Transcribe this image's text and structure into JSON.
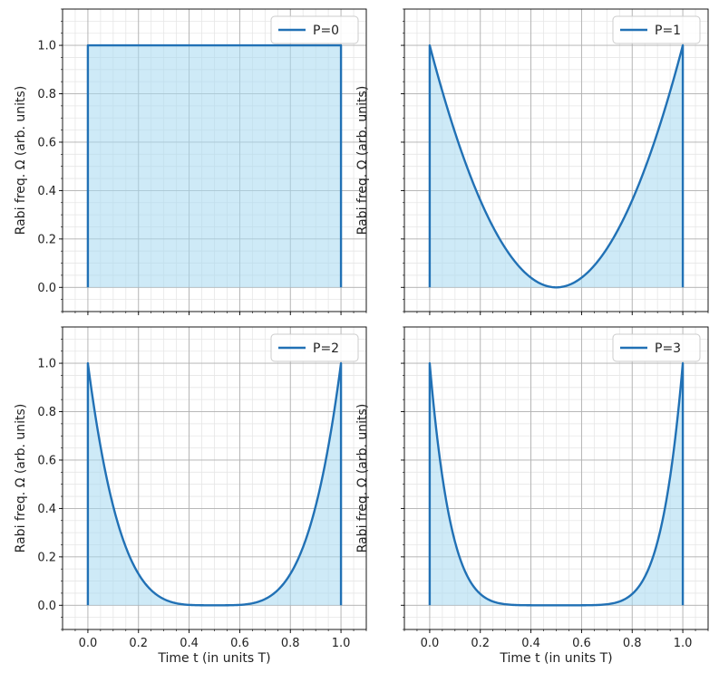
{
  "colors": {
    "line": "#2171b5",
    "fill": "#a6d8f0",
    "grid_major": "#b0b0b0",
    "grid_minor": "#e6e6e6",
    "axis": "#000000"
  },
  "chart_data": [
    {
      "type": "area",
      "legend": "P=0",
      "legend_position": "top-right",
      "function": "(2t-1)^(2P)",
      "P": 0,
      "xlim": [
        -0.1,
        1.1
      ],
      "ylim": [
        -0.1,
        1.15
      ],
      "xticks": [
        "0.0",
        "0.2",
        "0.4",
        "0.6",
        "0.8",
        "1.0"
      ],
      "yticks": [
        "0.0",
        "0.2",
        "0.4",
        "0.6",
        "0.8",
        "1.0"
      ],
      "xlabel": "",
      "ylabel": "Rabi freq. Ω (arb. units)",
      "grid": true,
      "x": [
        0.0,
        0.25,
        0.5,
        0.75,
        1.0
      ],
      "y": [
        1.0,
        1.0,
        1.0,
        1.0,
        1.0
      ]
    },
    {
      "type": "area",
      "legend": "P=1",
      "legend_position": "top-right",
      "function": "(2t-1)^(2P)",
      "P": 1,
      "xlim": [
        -0.1,
        1.1
      ],
      "ylim": [
        -0.1,
        1.15
      ],
      "xticks": [
        "0.0",
        "0.2",
        "0.4",
        "0.6",
        "0.8",
        "1.0"
      ],
      "yticks": [
        "0.0",
        "0.2",
        "0.4",
        "0.6",
        "0.8",
        "1.0"
      ],
      "xlabel": "",
      "ylabel": "Rabi freq. Ω (arb. units)",
      "grid": true,
      "x": [
        0.0,
        0.1,
        0.2,
        0.3,
        0.4,
        0.5,
        0.6,
        0.7,
        0.8,
        0.9,
        1.0
      ],
      "y": [
        1.0,
        0.64,
        0.36,
        0.16,
        0.04,
        0.0,
        0.04,
        0.16,
        0.36,
        0.64,
        1.0
      ]
    },
    {
      "type": "area",
      "legend": "P=2",
      "legend_position": "top-right",
      "function": "(2t-1)^(2P)",
      "P": 2,
      "xlim": [
        -0.1,
        1.1
      ],
      "ylim": [
        -0.1,
        1.15
      ],
      "xticks": [
        "0.0",
        "0.2",
        "0.4",
        "0.6",
        "0.8",
        "1.0"
      ],
      "yticks": [
        "0.0",
        "0.2",
        "0.4",
        "0.6",
        "0.8",
        "1.0"
      ],
      "xlabel": "Time t (in units T)",
      "ylabel": "Rabi freq. Ω (arb. units)",
      "grid": true,
      "x": [
        0.0,
        0.1,
        0.2,
        0.3,
        0.4,
        0.5,
        0.6,
        0.7,
        0.8,
        0.9,
        1.0
      ],
      "y": [
        1.0,
        0.41,
        0.13,
        0.03,
        0.0,
        0.0,
        0.0,
        0.03,
        0.13,
        0.41,
        1.0
      ]
    },
    {
      "type": "area",
      "legend": "P=3",
      "legend_position": "top-right",
      "function": "(2t-1)^(2P)",
      "P": 3,
      "xlim": [
        -0.1,
        1.1
      ],
      "ylim": [
        -0.1,
        1.15
      ],
      "xticks": [
        "0.0",
        "0.2",
        "0.4",
        "0.6",
        "0.8",
        "1.0"
      ],
      "yticks": [
        "0.0",
        "0.2",
        "0.4",
        "0.6",
        "0.8",
        "1.0"
      ],
      "xlabel": "Time t (in units T)",
      "ylabel": "Rabi freq. Ω (arb. units)",
      "grid": true,
      "x": [
        0.0,
        0.1,
        0.2,
        0.3,
        0.4,
        0.5,
        0.6,
        0.7,
        0.8,
        0.9,
        1.0
      ],
      "y": [
        1.0,
        0.26,
        0.05,
        0.0,
        0.0,
        0.0,
        0.0,
        0.0,
        0.05,
        0.26,
        1.0
      ]
    }
  ]
}
